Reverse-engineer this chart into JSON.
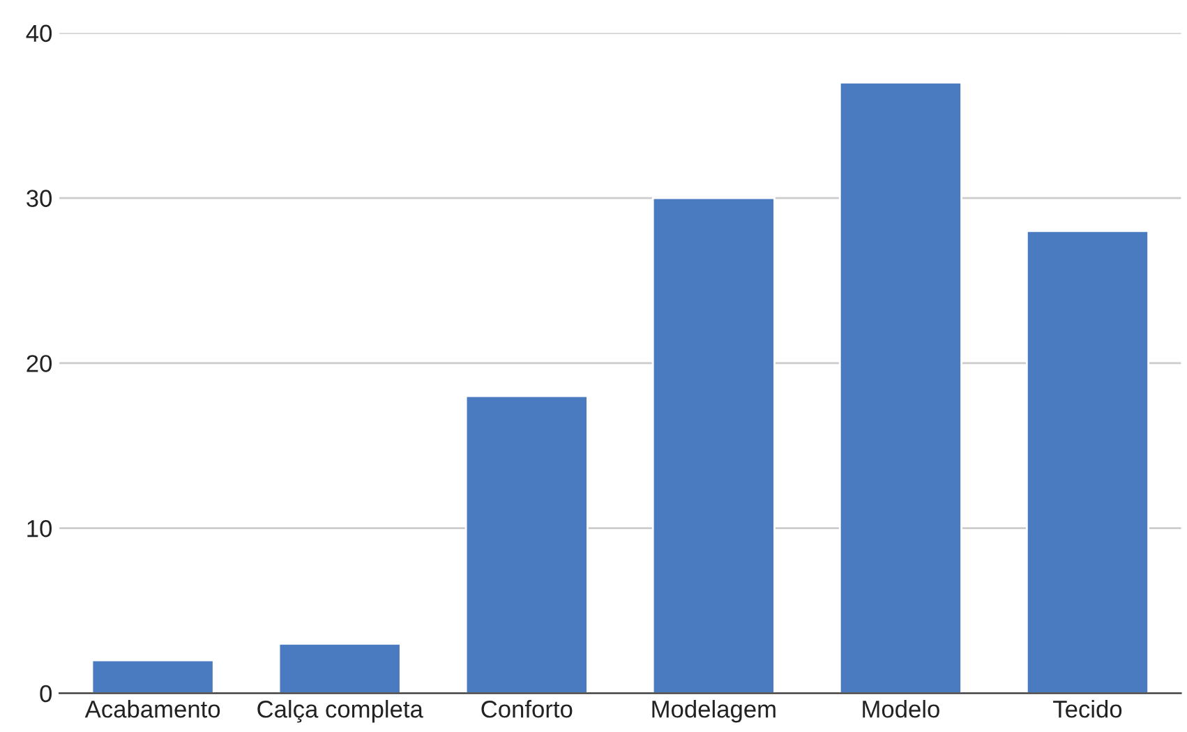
{
  "chart_data": {
    "type": "bar",
    "categories": [
      "Acabamento",
      "Calça completa",
      "Conforto",
      "Modelagem",
      "Modelo",
      "Tecido"
    ],
    "values": [
      2,
      3,
      18,
      30,
      37,
      28
    ],
    "color": "#4a7bc0",
    "ylim": [
      0,
      40
    ],
    "yticks": [
      0,
      10,
      20,
      30,
      40
    ],
    "grid": "y"
  }
}
